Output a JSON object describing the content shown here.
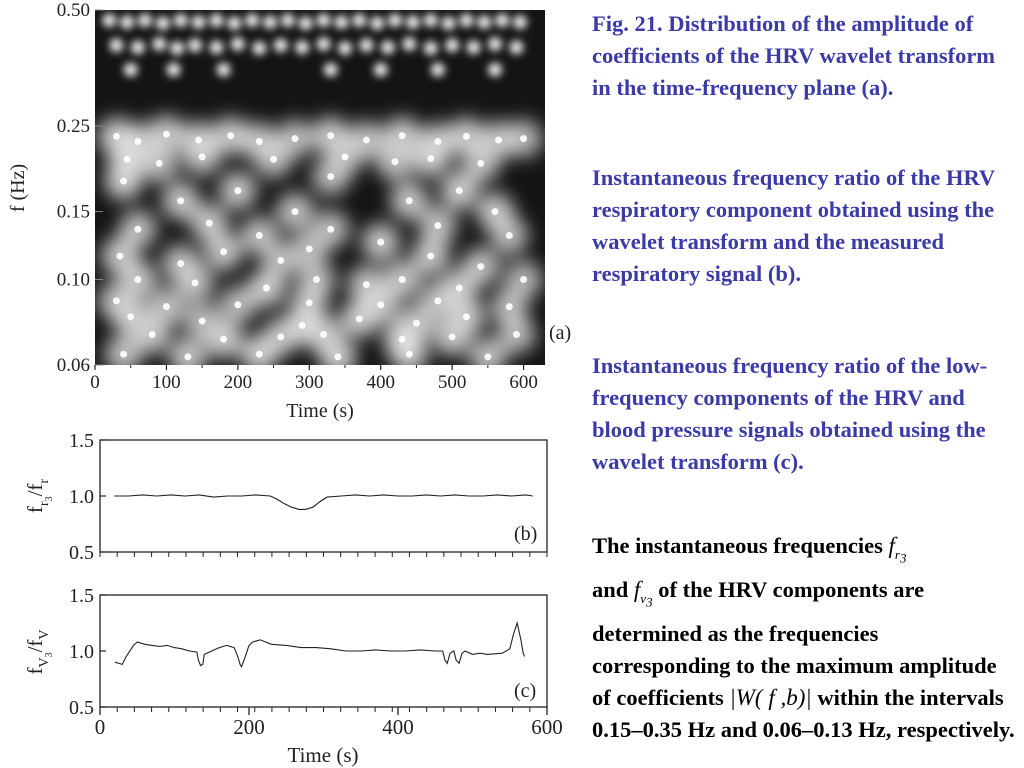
{
  "chart_data": [
    {
      "id": "a",
      "type": "heatmap",
      "panel_label": "(a)",
      "xlabel": "Time (s)",
      "ylabel": "f  (Hz)",
      "x_ticks": [
        0,
        100,
        200,
        300,
        400,
        500,
        600
      ],
      "y_ticks": [
        0.06,
        0.1,
        0.15,
        0.25,
        0.5
      ],
      "y_tick_labels": [
        "0.06",
        "0.10",
        "0.15",
        "0.25",
        "0.50"
      ],
      "y_scale": "log",
      "xlim": [
        0,
        630
      ],
      "ylim": [
        0.06,
        0.5
      ],
      "colormap": "grayscale, dark = low amplitude, white = high amplitude",
      "blobs": [
        [
          20,
          0.47,
          1
        ],
        [
          45,
          0.465,
          1
        ],
        [
          70,
          0.47,
          1
        ],
        [
          95,
          0.462,
          1
        ],
        [
          120,
          0.47,
          1
        ],
        [
          145,
          0.465,
          1
        ],
        [
          170,
          0.47,
          1
        ],
        [
          195,
          0.462,
          1
        ],
        [
          220,
          0.47,
          1
        ],
        [
          245,
          0.465,
          1
        ],
        [
          270,
          0.47,
          1
        ],
        [
          295,
          0.462,
          1
        ],
        [
          320,
          0.47,
          1
        ],
        [
          345,
          0.465,
          1
        ],
        [
          370,
          0.47,
          1
        ],
        [
          395,
          0.462,
          1
        ],
        [
          420,
          0.47,
          1
        ],
        [
          445,
          0.465,
          1
        ],
        [
          470,
          0.47,
          1
        ],
        [
          495,
          0.462,
          1
        ],
        [
          520,
          0.47,
          1
        ],
        [
          545,
          0.465,
          1
        ],
        [
          570,
          0.47,
          1
        ],
        [
          595,
          0.465,
          1
        ],
        [
          30,
          0.405,
          1
        ],
        [
          60,
          0.4,
          1
        ],
        [
          90,
          0.408,
          1
        ],
        [
          115,
          0.398,
          1
        ],
        [
          140,
          0.405,
          1
        ],
        [
          170,
          0.4,
          1
        ],
        [
          200,
          0.408,
          1
        ],
        [
          230,
          0.398,
          1
        ],
        [
          260,
          0.405,
          1
        ],
        [
          290,
          0.4,
          1
        ],
        [
          320,
          0.408,
          1
        ],
        [
          350,
          0.398,
          1
        ],
        [
          380,
          0.405,
          1
        ],
        [
          410,
          0.4,
          1
        ],
        [
          440,
          0.408,
          1
        ],
        [
          470,
          0.398,
          1
        ],
        [
          500,
          0.405,
          1
        ],
        [
          530,
          0.4,
          1
        ],
        [
          560,
          0.408,
          1
        ],
        [
          590,
          0.4,
          1
        ],
        [
          50,
          0.35,
          1
        ],
        [
          110,
          0.35,
          1
        ],
        [
          180,
          0.35,
          1
        ],
        [
          330,
          0.35,
          1
        ],
        [
          400,
          0.35,
          1
        ],
        [
          480,
          0.35,
          1
        ],
        [
          560,
          0.35,
          1
        ],
        [
          30,
          0.235,
          0.9
        ],
        [
          60,
          0.228,
          0.8
        ],
        [
          100,
          0.238,
          0.9
        ],
        [
          145,
          0.23,
          0.8
        ],
        [
          190,
          0.236,
          0.9
        ],
        [
          230,
          0.228,
          0.8
        ],
        [
          280,
          0.232,
          0.7
        ],
        [
          330,
          0.236,
          0.9
        ],
        [
          380,
          0.23,
          0.8
        ],
        [
          430,
          0.236,
          0.9
        ],
        [
          480,
          0.228,
          0.8
        ],
        [
          520,
          0.235,
          0.9
        ],
        [
          565,
          0.23,
          0.8
        ],
        [
          600,
          0.232,
          0.6
        ],
        [
          45,
          0.205,
          0.9
        ],
        [
          90,
          0.2,
          0.8
        ],
        [
          150,
          0.208,
          0.7
        ],
        [
          250,
          0.205,
          0.7
        ],
        [
          350,
          0.208,
          0.6
        ],
        [
          420,
          0.202,
          0.8
        ],
        [
          470,
          0.206,
          0.9
        ],
        [
          540,
          0.2,
          0.8
        ],
        [
          40,
          0.18,
          1
        ],
        [
          120,
          0.16,
          0.9
        ],
        [
          200,
          0.17,
          0.9
        ],
        [
          280,
          0.15,
          0.8
        ],
        [
          330,
          0.185,
          0.7
        ],
        [
          440,
          0.16,
          0.9
        ],
        [
          510,
          0.17,
          1
        ],
        [
          560,
          0.15,
          0.9
        ],
        [
          60,
          0.135,
          0.8
        ],
        [
          160,
          0.14,
          0.9
        ],
        [
          230,
          0.13,
          0.8
        ],
        [
          330,
          0.135,
          0.7
        ],
        [
          400,
          0.125,
          0.9
        ],
        [
          480,
          0.138,
          0.8
        ],
        [
          580,
          0.13,
          0.7
        ],
        [
          35,
          0.115,
          0.9
        ],
        [
          120,
          0.11,
          0.8
        ],
        [
          180,
          0.118,
          0.9
        ],
        [
          260,
          0.112,
          0.7
        ],
        [
          300,
          0.12,
          0.7
        ],
        [
          470,
          0.115,
          0.9
        ],
        [
          540,
          0.108,
          0.8
        ],
        [
          60,
          0.1,
          0.9
        ],
        [
          140,
          0.098,
          0.8
        ],
        [
          240,
          0.095,
          1
        ],
        [
          310,
          0.1,
          0.7
        ],
        [
          380,
          0.097,
          0.8
        ],
        [
          430,
          0.1,
          0.9
        ],
        [
          510,
          0.095,
          0.9
        ],
        [
          600,
          0.1,
          0.6
        ],
        [
          30,
          0.088,
          0.7
        ],
        [
          100,
          0.085,
          0.8
        ],
        [
          200,
          0.086,
          0.7
        ],
        [
          300,
          0.087,
          0.8
        ],
        [
          400,
          0.086,
          0.9
        ],
        [
          480,
          0.088,
          0.8
        ],
        [
          580,
          0.085,
          0.7
        ],
        [
          50,
          0.08,
          0.9
        ],
        [
          150,
          0.078,
          0.7
        ],
        [
          290,
          0.076,
          0.9
        ],
        [
          370,
          0.079,
          1
        ],
        [
          450,
          0.077,
          0.8
        ],
        [
          520,
          0.08,
          0.9
        ],
        [
          80,
          0.072,
          0.9
        ],
        [
          180,
          0.07,
          1
        ],
        [
          260,
          0.071,
          0.8
        ],
        [
          320,
          0.072,
          0.9
        ],
        [
          430,
          0.07,
          1
        ],
        [
          500,
          0.071,
          0.9
        ],
        [
          590,
          0.072,
          0.7
        ],
        [
          40,
          0.064,
          0.8
        ],
        [
          130,
          0.063,
          0.9
        ],
        [
          230,
          0.064,
          1
        ],
        [
          340,
          0.063,
          1
        ],
        [
          440,
          0.064,
          0.9
        ],
        [
          550,
          0.063,
          0.8
        ]
      ]
    },
    {
      "id": "b",
      "type": "line",
      "panel_label": "(b)",
      "ylabel": "f_r3/f_r",
      "ylim": [
        0.5,
        1.5
      ],
      "y_ticks": [
        0.5,
        1.0,
        1.5
      ],
      "y_tick_labels": [
        "0.5",
        "1.0",
        "1.5"
      ],
      "xlim": [
        0,
        630
      ],
      "x_ticks": [
        0,
        100,
        200,
        300,
        400,
        500,
        600
      ],
      "show_x_tick_labels": false,
      "series": [
        {
          "x": [
            20,
            40,
            60,
            80,
            100,
            120,
            140,
            160,
            180,
            200,
            220,
            240,
            250,
            260,
            270,
            280,
            290,
            300,
            310,
            320,
            340,
            360,
            380,
            400,
            420,
            440,
            460,
            480,
            500,
            520,
            540,
            560,
            580,
            600,
            610
          ],
          "y": [
            1.0,
            1.0,
            1.01,
            1.0,
            1.01,
            1.0,
            1.01,
            0.99,
            1.0,
            1.0,
            1.01,
            1.0,
            0.97,
            0.93,
            0.9,
            0.88,
            0.88,
            0.9,
            0.95,
            0.99,
            1.0,
            1.01,
            1.0,
            1.01,
            1.0,
            1.0,
            1.01,
            1.0,
            1.01,
            1.0,
            1.0,
            1.01,
            1.0,
            1.01,
            1.0
          ]
        }
      ]
    },
    {
      "id": "c",
      "type": "line",
      "panel_label": "(c)",
      "xlabel": "Time (s)",
      "ylabel": "f_v3/f_v",
      "ylim": [
        0.5,
        1.5
      ],
      "y_ticks": [
        0.5,
        1.0,
        1.5
      ],
      "y_tick_labels": [
        "0.5",
        "1.0",
        "1.5"
      ],
      "xlim": [
        0,
        600
      ],
      "x_ticks": [
        0,
        200,
        400,
        600
      ],
      "series": [
        {
          "x": [
            20,
            30,
            35,
            45,
            50,
            60,
            70,
            80,
            90,
            100,
            110,
            120,
            130,
            132,
            135,
            138,
            140,
            150,
            160,
            170,
            180,
            185,
            188,
            190,
            195,
            200,
            205,
            215,
            230,
            250,
            270,
            290,
            310,
            330,
            350,
            370,
            390,
            410,
            430,
            450,
            460,
            463,
            466,
            470,
            475,
            478,
            482,
            486,
            490,
            500,
            510,
            520,
            540,
            550,
            555,
            560,
            565,
            568,
            570
          ],
          "y": [
            0.9,
            0.88,
            0.95,
            1.05,
            1.08,
            1.06,
            1.05,
            1.04,
            1.05,
            1.03,
            1.02,
            1.0,
            0.99,
            0.92,
            0.87,
            0.88,
            0.97,
            1.0,
            1.03,
            1.05,
            1.03,
            0.95,
            0.88,
            0.86,
            0.95,
            1.05,
            1.08,
            1.1,
            1.06,
            1.05,
            1.03,
            1.03,
            1.02,
            1.0,
            1.0,
            1.01,
            1.0,
            1.0,
            1.01,
            1.0,
            1.0,
            0.92,
            0.89,
            0.98,
            1.0,
            0.92,
            0.89,
            0.98,
            1.0,
            0.97,
            0.98,
            0.97,
            0.98,
            1.02,
            1.15,
            1.25,
            1.1,
            0.98,
            0.95
          ]
        }
      ]
    }
  ],
  "axis_symbols": {
    "b_main": "f",
    "b_sub": "r",
    "b_subsub": "3",
    "b_den_main": "f",
    "b_den_sub": "r",
    "c_main": "f",
    "c_sub": "V",
    "c_subsub": "3",
    "c_den_main": "f",
    "c_den_sub": "V"
  },
  "captions": {
    "p1": "Fig. 21. Distribution of the amplitude of coefficients of the HRV wavelet transform in the time-frequency plane (a).",
    "p2": "Instantaneous frequency ratio of the HRV respiratory component obtained using the wavelet transform and the measured respiratory signal (b).",
    "p3": "Instantaneous frequency ratio of the low-frequency components of the HRV and blood pressure signals obtained using the wavelet transform (c).",
    "p4_a": "The instantaneous frequencies ",
    "p4_b": "and ",
    "p4_c": " of the HRV components are determined as the frequencies corresponding to the maximum amplitude of coefficients ",
    "p4_d": "within the intervals 0.15–0.35 Hz and 0.06–0.13 Hz, respectively.",
    "sym_fr_main": "f",
    "sym_fr_sub": "r",
    "sym_fr_subsub": "3",
    "sym_fv_main": "f",
    "sym_fv_sub": "v",
    "sym_fv_subsub": "3",
    "sym_w": "|W( f ,b)|"
  },
  "colors": {
    "caption_blue": "#3b3ba8",
    "caption_black": "#000000",
    "heatmap_background": "#141414",
    "line": "#222222"
  }
}
